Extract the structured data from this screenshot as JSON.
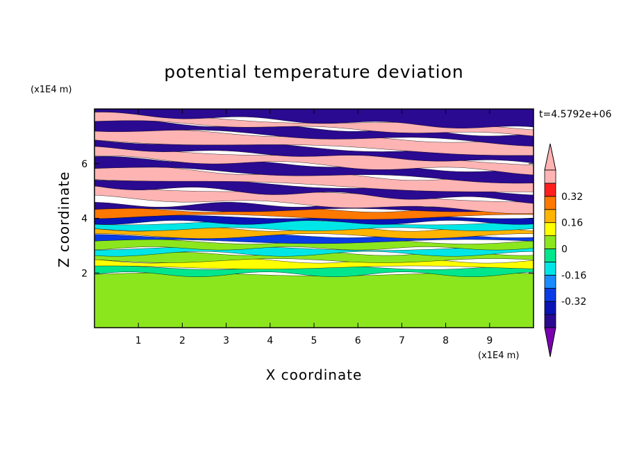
{
  "chart_data": {
    "type": "heatmap",
    "title": "potential temperature deviation",
    "xlabel": "X coordinate",
    "ylabel": "Z coordinate",
    "x_unit": "(x1E4 m)",
    "y_unit": "(x1E4 m)",
    "time_label": "t=4.5792e+06",
    "xlim": [
      0,
      10
    ],
    "ylim": [
      0,
      8
    ],
    "x_ticks": [
      "1",
      "2",
      "3",
      "4",
      "5",
      "6",
      "7",
      "8",
      "9"
    ],
    "x_tick_values": [
      1,
      2,
      3,
      4,
      5,
      6,
      7,
      8,
      9
    ],
    "y_ticks": [
      "2",
      "4",
      "6"
    ],
    "y_tick_values": [
      2,
      4,
      6
    ],
    "colorbar": {
      "levels": [
        -0.48,
        -0.4,
        -0.32,
        -0.24,
        -0.16,
        -0.08,
        0,
        0.08,
        0.16,
        0.24,
        0.32,
        0.4,
        0.48
      ],
      "colors": [
        "#7a00b0",
        "#2a0a90",
        "#0a14b4",
        "#0a3ce6",
        "#1a8cff",
        "#00e6e6",
        "#00e68c",
        "#8ce61e",
        "#ffff00",
        "#ffb400",
        "#ff7800",
        "#ff1e1e",
        "#ffb4b4"
      ],
      "tick_labels": [
        "0.32",
        "0.16",
        "0",
        "-0.16",
        "-0.32"
      ],
      "tick_values": [
        0.32,
        0.16,
        0,
        -0.16,
        -0.32
      ]
    },
    "layers": [
      {
        "z0": 0,
        "z1": 1.95,
        "value": 0.03
      },
      {
        "z0": 1.95,
        "z1": 2.2,
        "value": -0.02
      },
      {
        "z0": 2.2,
        "z1": 2.45,
        "value": 0.1
      },
      {
        "z0": 2.45,
        "z1": 2.7,
        "value": 0.0
      },
      {
        "z0": 2.7,
        "z1": 2.9,
        "value": -0.1
      },
      {
        "z0": 2.9,
        "z1": 3.15,
        "value": 0.05
      },
      {
        "z0": 3.15,
        "z1": 3.35,
        "value": -0.25
      },
      {
        "z0": 3.35,
        "z1": 3.6,
        "value": 0.2
      },
      {
        "z0": 3.6,
        "z1": 3.85,
        "value": -0.12
      },
      {
        "z0": 3.85,
        "z1": 4.05,
        "value": -0.35
      },
      {
        "z0": 4.05,
        "z1": 4.3,
        "value": 0.3
      },
      {
        "z0": 4.3,
        "z1": 4.5,
        "value": -0.45
      },
      {
        "z0": 4.5,
        "z1": 4.9,
        "value": 0.45
      },
      {
        "z0": 4.9,
        "z1": 5.2,
        "value": -0.45
      },
      {
        "z0": 5.2,
        "z1": 5.6,
        "value": 0.45
      },
      {
        "z0": 5.6,
        "z1": 5.95,
        "value": -0.45
      },
      {
        "z0": 5.95,
        "z1": 6.3,
        "value": 0.45
      },
      {
        "z0": 6.3,
        "z1": 6.6,
        "value": -0.45
      },
      {
        "z0": 6.6,
        "z1": 7.0,
        "value": 0.45
      },
      {
        "z0": 7.0,
        "z1": 7.3,
        "value": -0.45
      },
      {
        "z0": 7.3,
        "z1": 7.55,
        "value": 0.45
      },
      {
        "z0": 7.55,
        "z1": 8.0,
        "value": -0.45
      }
    ]
  }
}
